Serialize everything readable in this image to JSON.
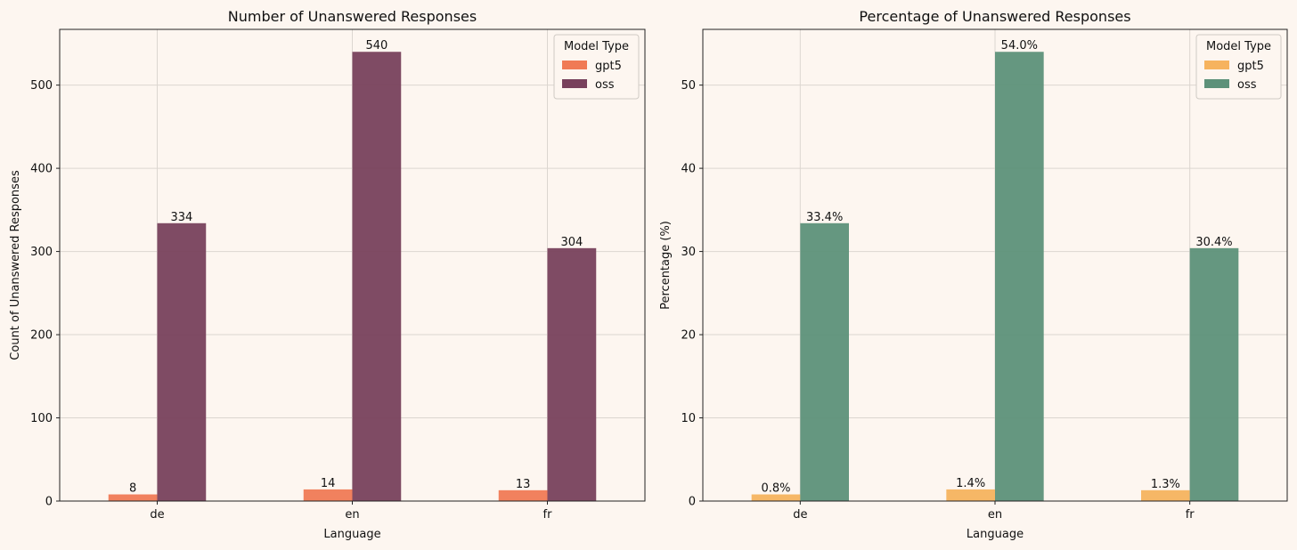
{
  "chart_data": [
    {
      "type": "bar",
      "title": "Number of Unanswered Responses",
      "xlabel": "Language",
      "ylabel": "Count of Unanswered Responses",
      "categories": [
        "de",
        "en",
        "fr"
      ],
      "ylim": [
        0,
        567
      ],
      "yticks": [
        0,
        100,
        200,
        300,
        400,
        500
      ],
      "grid": true,
      "legend": {
        "title": "Model Type",
        "placement": "top-right"
      },
      "series": [
        {
          "name": "gpt5",
          "values": [
            8,
            14,
            13
          ],
          "labels": [
            "8",
            "14",
            "13"
          ],
          "color": "#f07a55"
        },
        {
          "name": "oss",
          "values": [
            334,
            540,
            304
          ],
          "labels": [
            "334",
            "540",
            "304"
          ],
          "color": "#78415c"
        }
      ]
    },
    {
      "type": "bar",
      "title": "Percentage of Unanswered Responses",
      "xlabel": "Language",
      "ylabel": "Percentage (%)",
      "categories": [
        "de",
        "en",
        "fr"
      ],
      "ylim": [
        0,
        56.7
      ],
      "yticks": [
        0,
        10,
        20,
        30,
        40,
        50
      ],
      "grid": true,
      "legend": {
        "title": "Model Type",
        "placement": "top-right"
      },
      "series": [
        {
          "name": "gpt5",
          "values": [
            0.8,
            1.4,
            1.3
          ],
          "labels": [
            "0.8%",
            "1.4%",
            "1.3%"
          ],
          "color": "#f6b35e"
        },
        {
          "name": "oss",
          "values": [
            33.4,
            54.0,
            30.4
          ],
          "labels": [
            "33.4%",
            "54.0%",
            "30.4%"
          ],
          "color": "#5d9179"
        }
      ]
    }
  ]
}
